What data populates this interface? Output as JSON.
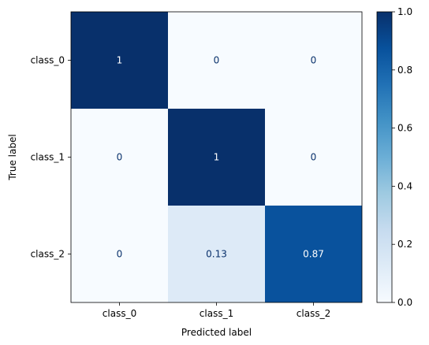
{
  "chart_data": {
    "type": "heatmap",
    "title": "",
    "xlabel": "Predicted label",
    "ylabel": "True label",
    "x_categories": [
      "class_0",
      "class_1",
      "class_2"
    ],
    "y_categories": [
      "class_0",
      "class_1",
      "class_2"
    ],
    "values": [
      [
        1,
        0,
        0
      ],
      [
        0,
        1,
        0
      ],
      [
        0,
        0.13,
        0.87
      ]
    ],
    "cell_labels": [
      [
        "1",
        "0",
        "0"
      ],
      [
        "0",
        "1",
        "0"
      ],
      [
        "0",
        "0.13",
        "0.87"
      ]
    ],
    "colormap": "Blues",
    "colorbar": {
      "range": [
        0,
        1
      ],
      "ticks": [
        "0.0",
        "0.2",
        "0.4",
        "0.6",
        "0.8",
        "1.0"
      ],
      "tick_values": [
        0,
        0.2,
        0.4,
        0.6,
        0.8,
        1.0
      ]
    },
    "grid": false,
    "colors": {
      "low": "#f7fbff",
      "high": "#08306b",
      "text_dark": "#08306b",
      "text_light": "#ffffff"
    }
  }
}
